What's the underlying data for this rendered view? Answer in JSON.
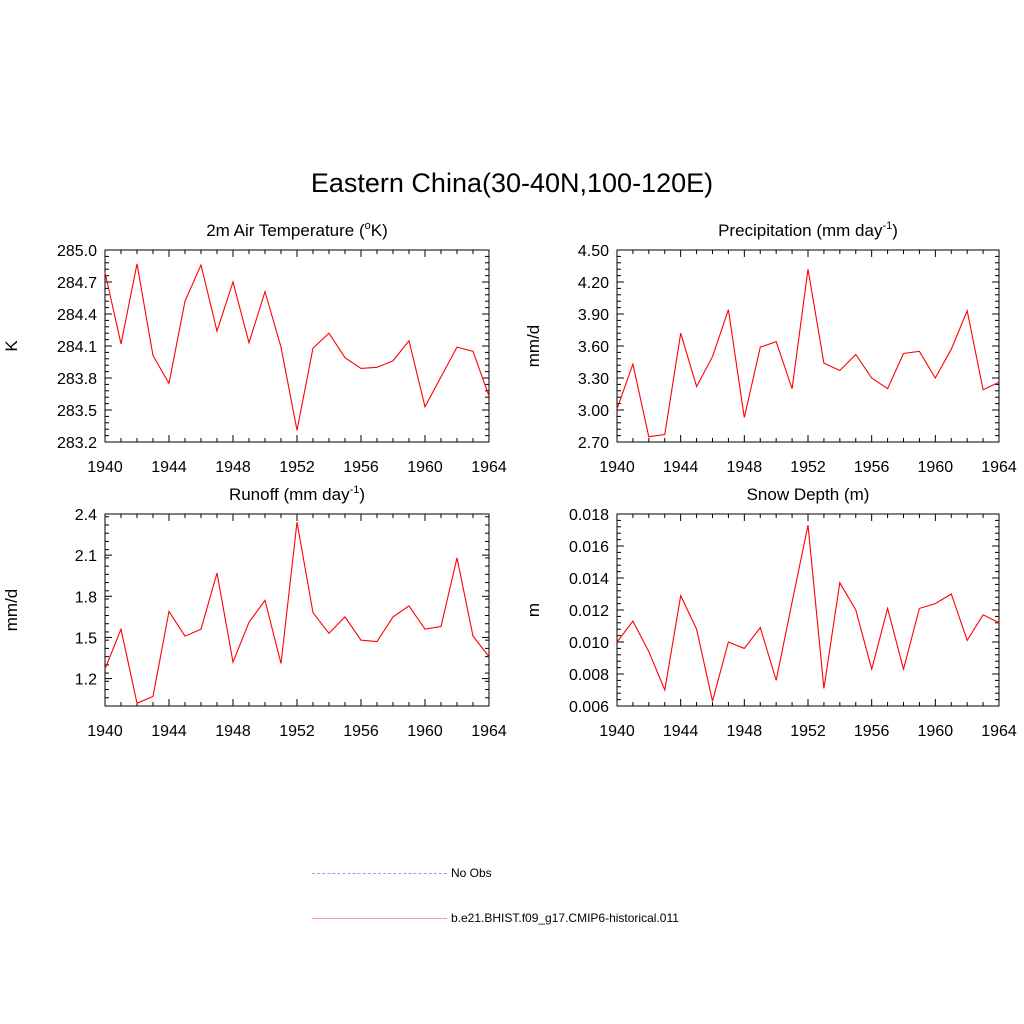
{
  "figure_title": "Eastern China(30-40N,100-120E)",
  "legend": [
    {
      "label": "No Obs",
      "color": "#9999ff",
      "style": "dashed"
    },
    {
      "label": "b.e21.BHIST.f09_g17.CMIP6-historical.011",
      "color": "#ff0000",
      "style": "solid"
    }
  ],
  "chart_data": [
    {
      "type": "line",
      "title_main": "2m Air Temperature (",
      "title_sup": "o",
      "title_end": "K)",
      "ylabel": "K",
      "xlim": [
        1940,
        1964
      ],
      "ylim": [
        283.2,
        285.0
      ],
      "xticks": [
        "1940",
        "1944",
        "1948",
        "1952",
        "1956",
        "1960",
        "1964"
      ],
      "yticks": [
        "283.2",
        "283.5",
        "283.8",
        "284.1",
        "284.4",
        "284.7",
        "285.0"
      ],
      "series": [
        {
          "color": "#ff0000",
          "x": [
            1940,
            1941,
            1942,
            1943,
            1944,
            1945,
            1946,
            1947,
            1948,
            1949,
            1950,
            1951,
            1952,
            1953,
            1954,
            1955,
            1956,
            1957,
            1958,
            1959,
            1960,
            1961,
            1962,
            1963,
            1964
          ],
          "y": [
            284.79,
            284.12,
            284.87,
            284.01,
            283.75,
            284.52,
            284.86,
            284.24,
            284.7,
            284.13,
            284.61,
            284.09,
            283.31,
            284.08,
            284.22,
            283.99,
            283.89,
            283.9,
            283.96,
            284.15,
            283.53,
            283.81,
            284.09,
            284.05,
            283.63
          ]
        }
      ]
    },
    {
      "type": "line",
      "title_main": "Precipitation (mm day",
      "title_sup": "-1",
      "title_end": ")",
      "ylabel": "mm/d",
      "xlim": [
        1940,
        1964
      ],
      "ylim": [
        2.7,
        4.5
      ],
      "xticks": [
        "1940",
        "1944",
        "1948",
        "1952",
        "1956",
        "1960",
        "1964"
      ],
      "yticks": [
        "2.70",
        "3.00",
        "3.30",
        "3.60",
        "3.90",
        "4.20",
        "4.50"
      ],
      "series": [
        {
          "color": "#ff0000",
          "x": [
            1940,
            1941,
            1942,
            1943,
            1944,
            1945,
            1946,
            1947,
            1948,
            1949,
            1950,
            1951,
            1952,
            1953,
            1954,
            1955,
            1956,
            1957,
            1958,
            1959,
            1960,
            1961,
            1962,
            1963,
            1964
          ],
          "y": [
            3.01,
            3.43,
            2.75,
            2.77,
            3.72,
            3.22,
            3.5,
            3.94,
            2.93,
            3.59,
            3.64,
            3.2,
            4.32,
            3.44,
            3.37,
            3.52,
            3.3,
            3.2,
            3.53,
            3.55,
            3.3,
            3.57,
            3.93,
            3.19,
            3.26
          ]
        }
      ]
    },
    {
      "type": "line",
      "title_main": "Runoff (mm day",
      "title_sup": "-1",
      "title_end": ")",
      "ylabel": "mm/d",
      "xlim": [
        1940,
        1964
      ],
      "ylim": [
        1.0,
        2.4
      ],
      "xticks": [
        "1940",
        "1944",
        "1948",
        "1952",
        "1956",
        "1960",
        "1964"
      ],
      "yticks": [
        "1.2",
        "1.5",
        "1.8",
        "2.1",
        "2.4"
      ],
      "yticks_values": [
        1.2,
        1.5,
        1.8,
        2.1,
        2.4
      ],
      "series": [
        {
          "color": "#ff0000",
          "x": [
            1940,
            1941,
            1942,
            1943,
            1944,
            1945,
            1946,
            1947,
            1948,
            1949,
            1950,
            1951,
            1952,
            1953,
            1954,
            1955,
            1956,
            1957,
            1958,
            1959,
            1960,
            1961,
            1962,
            1963,
            1964
          ],
          "y": [
            1.27,
            1.56,
            1.02,
            1.07,
            1.69,
            1.51,
            1.56,
            1.97,
            1.32,
            1.61,
            1.77,
            1.31,
            2.34,
            1.68,
            1.53,
            1.65,
            1.48,
            1.47,
            1.65,
            1.73,
            1.56,
            1.58,
            2.08,
            1.51,
            1.36
          ]
        }
      ]
    },
    {
      "type": "line",
      "title_main": "Snow Depth (m)",
      "title_sup": "",
      "title_end": "",
      "ylabel": "m",
      "xlim": [
        1940,
        1964
      ],
      "ylim": [
        0.006,
        0.018
      ],
      "xticks": [
        "1940",
        "1944",
        "1948",
        "1952",
        "1956",
        "1960",
        "1964"
      ],
      "yticks": [
        "0.006",
        "0.008",
        "0.010",
        "0.012",
        "0.014",
        "0.016",
        "0.018"
      ],
      "series": [
        {
          "color": "#ff0000",
          "x": [
            1940,
            1941,
            1942,
            1943,
            1944,
            1945,
            1946,
            1947,
            1948,
            1949,
            1950,
            1951,
            1952,
            1953,
            1954,
            1955,
            1956,
            1957,
            1958,
            1959,
            1960,
            1961,
            1962,
            1963,
            1964
          ],
          "y": [
            0.01,
            0.0113,
            0.0094,
            0.007,
            0.0129,
            0.0108,
            0.0063,
            0.01,
            0.0096,
            0.0109,
            0.0076,
            0.0125,
            0.0173,
            0.0071,
            0.0137,
            0.012,
            0.0083,
            0.0121,
            0.0083,
            0.0121,
            0.0124,
            0.013,
            0.0101,
            0.0117,
            0.0112
          ]
        }
      ]
    }
  ]
}
